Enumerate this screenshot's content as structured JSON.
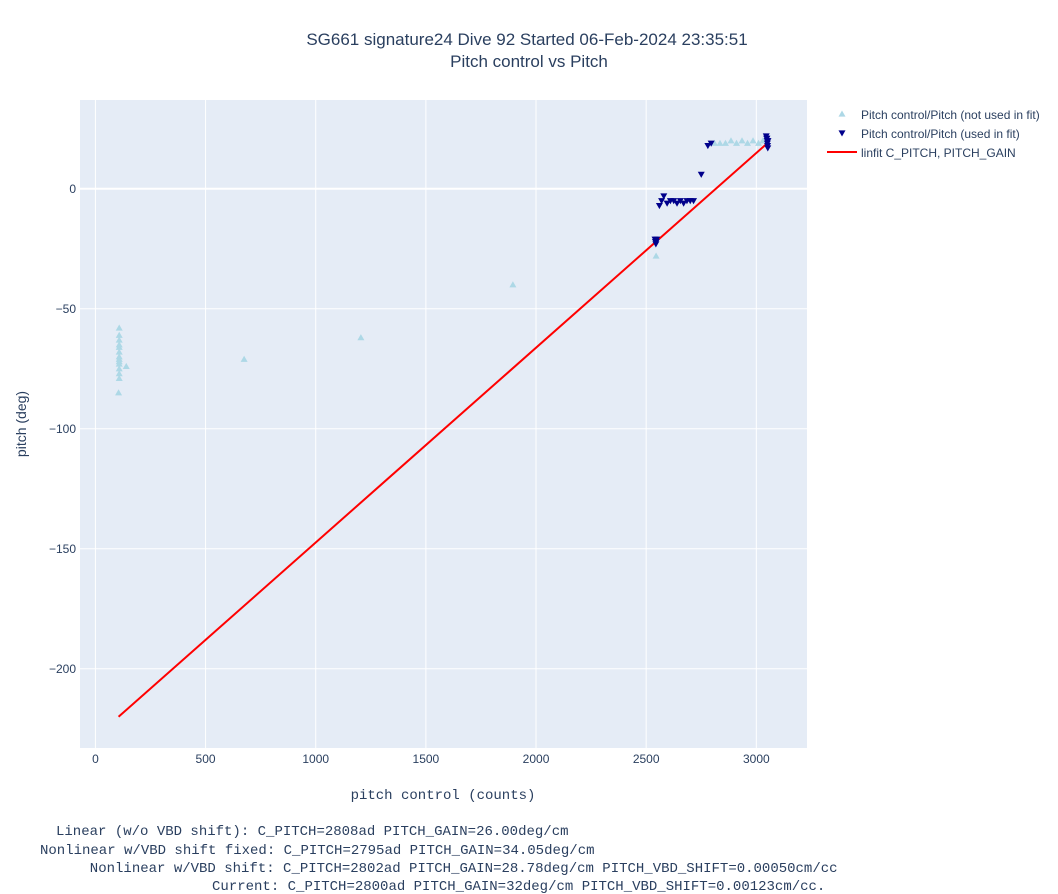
{
  "chart_data": {
    "type": "scatter",
    "title": "SG661 signature24 Dive 92 Started 06-Feb-2024 23:35:51",
    "subtitle": "Pitch control vs Pitch",
    "xlabel": "pitch control (counts)",
    "ylabel": "pitch (deg)",
    "xlim": [
      -70,
      3230
    ],
    "ylim": [
      -233,
      37
    ],
    "x_ticks": [
      0,
      500,
      1000,
      1500,
      2000,
      2500,
      3000
    ],
    "x_tick_labels": [
      "0",
      "500",
      "1000",
      "1500",
      "2000",
      "2500",
      "3000"
    ],
    "y_ticks": [
      0,
      -50,
      -100,
      -150,
      -200
    ],
    "y_tick_labels": [
      "0",
      "−50",
      "−100",
      "−150",
      "−200"
    ],
    "grid": true,
    "legend_position": "right",
    "colors": {
      "plot_bg": "#e5ecf6",
      "grid": "#ffffff",
      "not_used": "#add8e6",
      "used": "#00008b",
      "fit": "#ff0000",
      "text": "#2a3f5f"
    },
    "series": [
      {
        "name": "Pitch control/Pitch (not used in fit)",
        "marker": "triangle-up",
        "points": [
          [
            108,
            -58
          ],
          [
            108,
            -61
          ],
          [
            108,
            -63
          ],
          [
            108,
            -65
          ],
          [
            108,
            -66
          ],
          [
            108,
            -68
          ],
          [
            108,
            -70
          ],
          [
            108,
            -71
          ],
          [
            108,
            -72
          ],
          [
            108,
            -73
          ],
          [
            108,
            -75
          ],
          [
            108,
            -77
          ],
          [
            108,
            -79
          ],
          [
            105,
            -85
          ],
          [
            140,
            -74
          ],
          [
            675,
            -71
          ],
          [
            1205,
            -62
          ],
          [
            1895,
            -40
          ],
          [
            2545,
            -28
          ],
          [
            2810,
            19
          ],
          [
            2835,
            19
          ],
          [
            2860,
            19
          ],
          [
            2885,
            20
          ],
          [
            2910,
            19
          ],
          [
            2935,
            20
          ],
          [
            2960,
            19
          ],
          [
            2985,
            20
          ],
          [
            3010,
            19
          ],
          [
            3030,
            20
          ]
        ]
      },
      {
        "name": "Pitch control/Pitch (used in fit)",
        "marker": "triangle-down",
        "points": [
          [
            2540,
            -21
          ],
          [
            2542,
            -22
          ],
          [
            2544,
            -23
          ],
          [
            2546,
            -22
          ],
          [
            2548,
            -21
          ],
          [
            2560,
            -7
          ],
          [
            2570,
            -5
          ],
          [
            2580,
            -3
          ],
          [
            2595,
            -6
          ],
          [
            2610,
            -5
          ],
          [
            2625,
            -5
          ],
          [
            2640,
            -6
          ],
          [
            2655,
            -5
          ],
          [
            2670,
            -6
          ],
          [
            2685,
            -5
          ],
          [
            2700,
            -5
          ],
          [
            2715,
            -5
          ],
          [
            2750,
            6
          ],
          [
            2780,
            18
          ],
          [
            2795,
            19
          ],
          [
            3045,
            22
          ],
          [
            3047,
            21
          ],
          [
            3049,
            20
          ],
          [
            3050,
            19
          ],
          [
            3051,
            18
          ],
          [
            3052,
            17
          ],
          [
            3048,
            21
          ],
          [
            3053,
            20
          ]
        ]
      },
      {
        "name": "linfit C_PITCH, PITCH_GAIN",
        "marker": "line",
        "points": [
          [
            105,
            -220
          ],
          [
            3050,
            19
          ]
        ]
      }
    ],
    "annotations": [
      "     Linear (w/o VBD shift): C_PITCH=2808ad PITCH_GAIN=26.00deg/cm",
      "Nonlinear w/VBD shift fixed: C_PITCH=2795ad PITCH_GAIN=34.05deg/cm",
      "       Nonlinear w/VBD shift: C_PITCH=2802ad PITCH_GAIN=28.78deg/cm PITCH_VBD_SHIFT=0.00050cm/cc",
      "                    Current: C_PITCH=2800ad PITCH_GAIN=32deg/cm PITCH_VBD_SHIFT=0.00123cm/cc."
    ]
  }
}
